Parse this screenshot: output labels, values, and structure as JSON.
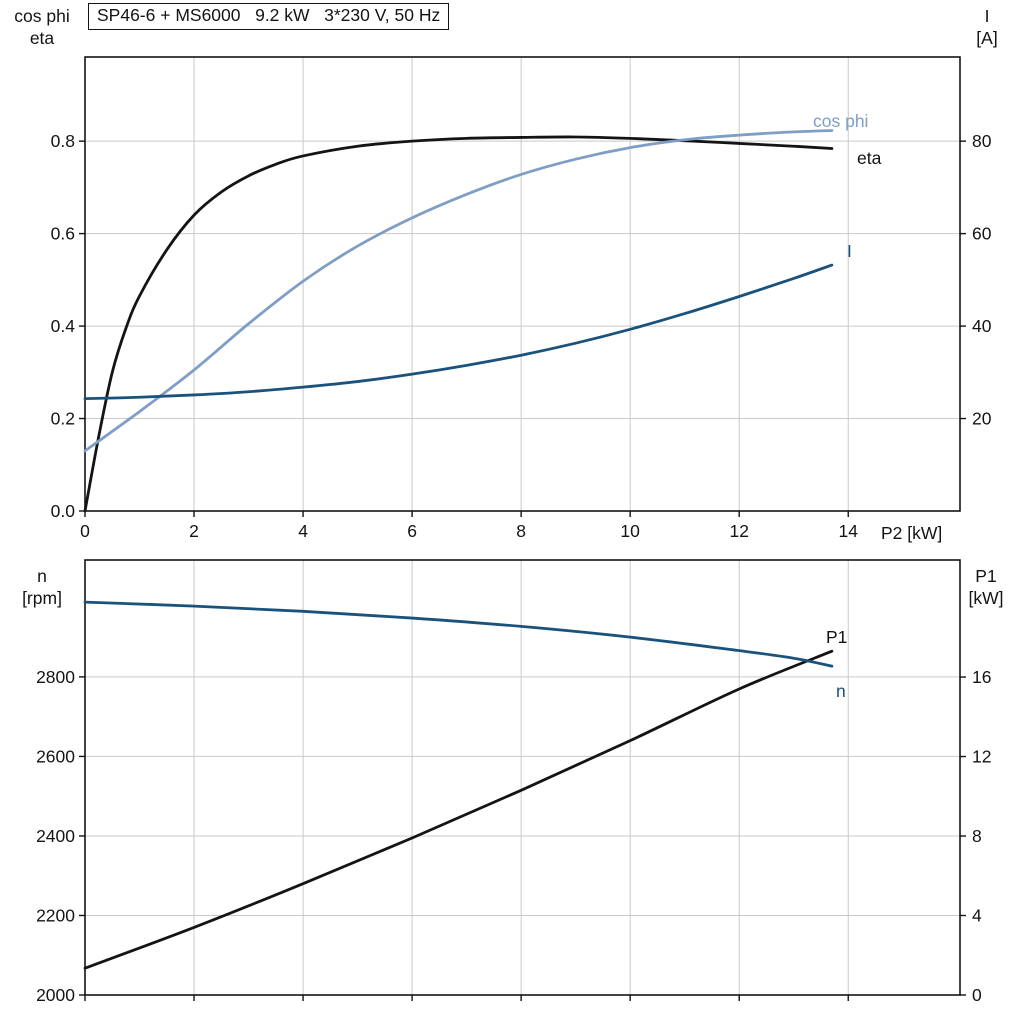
{
  "title": "SP46-6 + MS6000   9.2 kW   3*230 V, 50 Hz",
  "axis_titles": {
    "top_left": [
      "cos phi",
      "eta"
    ],
    "top_right": [
      "I",
      "[A]"
    ],
    "bottom_left": [
      "n",
      "[rpm]"
    ],
    "bottom_right": [
      "P1",
      "[kW]"
    ],
    "x": "P2 [kW]"
  },
  "colors": {
    "black": "#141414",
    "light_blue": "#7e9ec6",
    "dark_blue": "#1b527c",
    "grid": "#c9c9c9",
    "frame": "#141414"
  },
  "chart_data": [
    {
      "type": "line",
      "title": "SP46-6 + MS6000   9.2 kW   3*230 V, 50 Hz",
      "xlabel": "P2 [kW]",
      "x_axis": {
        "min": 0,
        "max": 16.05,
        "ticks": [
          0,
          2,
          4,
          6,
          8,
          10,
          12,
          14
        ],
        "tick_labels": [
          "0",
          "2",
          "4",
          "6",
          "8",
          "10",
          "12",
          "14"
        ]
      },
      "y_left": {
        "label": "cos phi / eta",
        "min": 0,
        "max": 0.982,
        "ticks": [
          0,
          0.2,
          0.4,
          0.6,
          0.8
        ],
        "tick_labels": [
          "0.0",
          "0.2",
          "0.4",
          "0.6",
          "0.8"
        ]
      },
      "y_right": {
        "label": "I [A]",
        "min": 0,
        "max": 98.2,
        "ticks": [
          20,
          40,
          60,
          80
        ],
        "tick_labels": [
          "20",
          "40",
          "60",
          "80"
        ]
      },
      "grid": true,
      "series": [
        {
          "name": "eta",
          "axis": "left",
          "color": "black",
          "points": [
            [
              0,
              0
            ],
            [
              0.25,
              0.16
            ],
            [
              0.5,
              0.3
            ],
            [
              0.75,
              0.395
            ],
            [
              1,
              0.465
            ],
            [
              1.5,
              0.565
            ],
            [
              2,
              0.64
            ],
            [
              2.5,
              0.69
            ],
            [
              3,
              0.725
            ],
            [
              3.5,
              0.75
            ],
            [
              4,
              0.768
            ],
            [
              5,
              0.789
            ],
            [
              6,
              0.8
            ],
            [
              7,
              0.806
            ],
            [
              8,
              0.808
            ],
            [
              9,
              0.809
            ],
            [
              10,
              0.806
            ],
            [
              11,
              0.801
            ],
            [
              12,
              0.795
            ],
            [
              13,
              0.789
            ],
            [
              13.7,
              0.784
            ]
          ]
        },
        {
          "name": "cos phi",
          "axis": "left",
          "color": "light_blue",
          "points": [
            [
              0,
              0.13
            ],
            [
              1,
              0.215
            ],
            [
              2,
              0.305
            ],
            [
              3,
              0.405
            ],
            [
              4,
              0.497
            ],
            [
              5,
              0.573
            ],
            [
              6,
              0.634
            ],
            [
              7,
              0.685
            ],
            [
              8,
              0.728
            ],
            [
              9,
              0.761
            ],
            [
              10,
              0.786
            ],
            [
              11,
              0.803
            ],
            [
              12,
              0.813
            ],
            [
              13,
              0.82
            ],
            [
              13.7,
              0.823
            ]
          ]
        },
        {
          "name": "I",
          "axis": "right",
          "color": "dark_blue",
          "points": [
            [
              0,
              24.3
            ],
            [
              1,
              24.6
            ],
            [
              2,
              25.1
            ],
            [
              3,
              25.8
            ],
            [
              4,
              26.8
            ],
            [
              5,
              28.0
            ],
            [
              6,
              29.6
            ],
            [
              7,
              31.5
            ],
            [
              8,
              33.7
            ],
            [
              9,
              36.3
            ],
            [
              10,
              39.3
            ],
            [
              11,
              42.7
            ],
            [
              12,
              46.4
            ],
            [
              13,
              50.3
            ],
            [
              13.7,
              53.2
            ]
          ]
        }
      ]
    },
    {
      "type": "line",
      "title": "",
      "xlabel": "",
      "x_axis": {
        "min": 0,
        "max": 16.05,
        "ticks": [
          0,
          2,
          4,
          6,
          8,
          10,
          12,
          14
        ],
        "tick_labels": []
      },
      "y_left": {
        "label": "n [rpm]",
        "min": 2000,
        "max": 3094,
        "ticks": [
          2000,
          2200,
          2400,
          2600,
          2800
        ],
        "tick_labels": [
          "2000",
          "2200",
          "2400",
          "2600",
          "2800"
        ]
      },
      "y_right": {
        "label": "P1 [kW]",
        "min": 0,
        "max": 21.89,
        "ticks": [
          0,
          4,
          8,
          12,
          16
        ],
        "tick_labels": [
          "0",
          "4",
          "8",
          "12",
          "16"
        ]
      },
      "grid": true,
      "series": [
        {
          "name": "P1",
          "axis": "right",
          "color": "black",
          "points": [
            [
              0,
              1.35
            ],
            [
              2,
              3.4
            ],
            [
              4,
              5.6
            ],
            [
              6,
              7.9
            ],
            [
              8,
              10.3
            ],
            [
              10,
              12.8
            ],
            [
              12,
              15.4
            ],
            [
              13.7,
              17.3
            ]
          ]
        },
        {
          "name": "n",
          "axis": "left",
          "color": "dark_blue",
          "points": [
            [
              0,
              2988
            ],
            [
              2,
              2978
            ],
            [
              4,
              2965
            ],
            [
              6,
              2948
            ],
            [
              8,
              2927
            ],
            [
              10,
              2900
            ],
            [
              12,
              2866
            ],
            [
              13,
              2847
            ],
            [
              13.7,
              2827
            ]
          ]
        }
      ]
    }
  ]
}
